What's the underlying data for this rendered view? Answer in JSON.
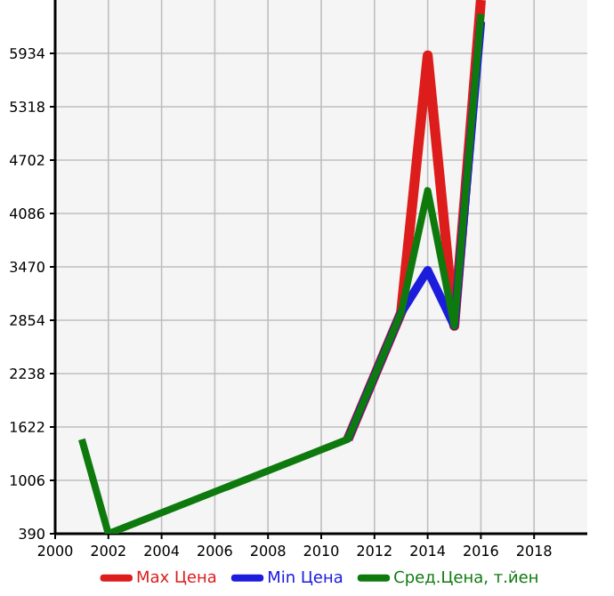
{
  "chart_data": {
    "type": "line",
    "x": [
      2001,
      2002,
      2011,
      2013,
      2014,
      2015,
      2016
    ],
    "series": [
      {
        "name": "Max Цена",
        "color": "#dd1c1c",
        "values": [
          null,
          null,
          1480,
          2940,
          5910,
          2790,
          6550
        ]
      },
      {
        "name": "Min Цена",
        "color": "#1c1cdd",
        "values": [
          null,
          null,
          1480,
          2940,
          3430,
          2790,
          6300
        ]
      },
      {
        "name": "Сред.Цена, т.йен",
        "color": "#0e7a0e",
        "values": [
          1480,
          390,
          1480,
          2940,
          4350,
          2790,
          6390
        ]
      }
    ],
    "xlim": [
      2000,
      2020
    ],
    "ylim": [
      390,
      6550
    ],
    "xticks": [
      2000,
      2002,
      2004,
      2006,
      2008,
      2010,
      2012,
      2014,
      2016,
      2018
    ],
    "yticks": [
      390,
      1006,
      1622,
      2238,
      2854,
      3470,
      4086,
      4702,
      5318,
      5934
    ],
    "grid": true,
    "legend": "bottom",
    "marker": "none",
    "line_style": "solid"
  }
}
